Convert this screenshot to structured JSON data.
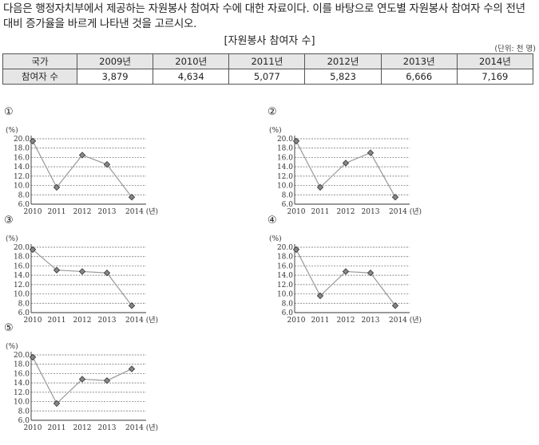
{
  "question": "다음은 행정자치부에서 제공하는 자원봉사 참여자 수에 대한 자료이다. 이를 바탕으로 연도별 자원봉사 참여자 수의 전년 대비 증가율을 바르게 나타낸 것을 고르시오.",
  "table": {
    "title": "[자원봉사 참여자 수]",
    "unit": "(단위: 천 명)",
    "header_label": "국가",
    "row_label": "참여자 수",
    "years": [
      "2009년",
      "2010년",
      "2011년",
      "2012년",
      "2013년",
      "2014년"
    ],
    "values": [
      "3,879",
      "4,634",
      "5,077",
      "5,823",
      "6,666",
      "7,169"
    ]
  },
  "chart_common": {
    "y_unit": "(%)",
    "y_ticks": [
      "20.0",
      "18.0",
      "16.0",
      "14.0",
      "12.0",
      "10.0",
      "8.0",
      "6.0"
    ],
    "ylim": [
      6,
      20
    ],
    "x_labels": [
      "2010",
      "2011",
      "2012",
      "2013",
      "2014 (년)"
    ]
  },
  "chart_data": [
    {
      "type": "line",
      "label": "①",
      "x": [
        "2010",
        "2011",
        "2012",
        "2013",
        "2014"
      ],
      "values": [
        19.5,
        9.6,
        16.5,
        14.5,
        7.5
      ],
      "ylim": [
        6,
        20
      ]
    },
    {
      "type": "line",
      "label": "②",
      "x": [
        "2010",
        "2011",
        "2012",
        "2013",
        "2014"
      ],
      "values": [
        19.5,
        9.6,
        14.8,
        17.0,
        7.5
      ],
      "ylim": [
        6,
        20
      ]
    },
    {
      "type": "line",
      "label": "③",
      "x": [
        "2010",
        "2011",
        "2012",
        "2013",
        "2014"
      ],
      "values": [
        19.5,
        15.1,
        14.8,
        14.5,
        7.5
      ],
      "ylim": [
        6,
        20
      ]
    },
    {
      "type": "line",
      "label": "④",
      "x": [
        "2010",
        "2011",
        "2012",
        "2013",
        "2014"
      ],
      "values": [
        19.5,
        9.6,
        14.8,
        14.5,
        7.5
      ],
      "ylim": [
        6,
        20
      ]
    },
    {
      "type": "line",
      "label": "⑤",
      "x": [
        "2010",
        "2011",
        "2012",
        "2013",
        "2014"
      ],
      "values": [
        19.5,
        9.6,
        14.8,
        14.5,
        17.0
      ],
      "ylim": [
        6,
        20
      ]
    }
  ]
}
